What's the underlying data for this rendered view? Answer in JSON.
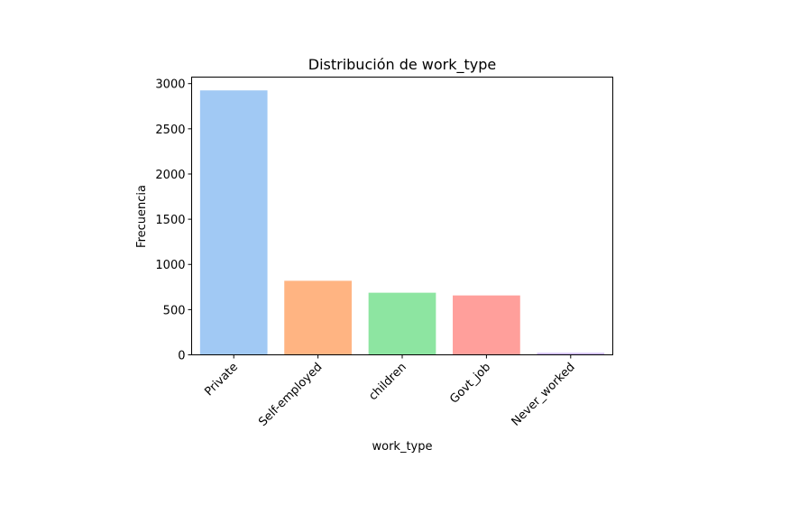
{
  "chart_data": {
    "type": "bar",
    "title": "Distribución de work_type",
    "xlabel": "work_type",
    "ylabel": "Frecuencia",
    "categories": [
      "Private",
      "Self-employed",
      "children",
      "Govt_job",
      "Never_worked"
    ],
    "values": [
      2925,
      819,
      687,
      657,
      22
    ],
    "colors": [
      "#a1c9f4",
      "#ffb482",
      "#8de5a1",
      "#ff9f9b",
      "#d0bbff"
    ],
    "ylim": [
      0,
      3072
    ],
    "yticks": [
      0,
      500,
      1000,
      1500,
      2000,
      2500,
      3000
    ],
    "grid": false,
    "legend": "none"
  }
}
